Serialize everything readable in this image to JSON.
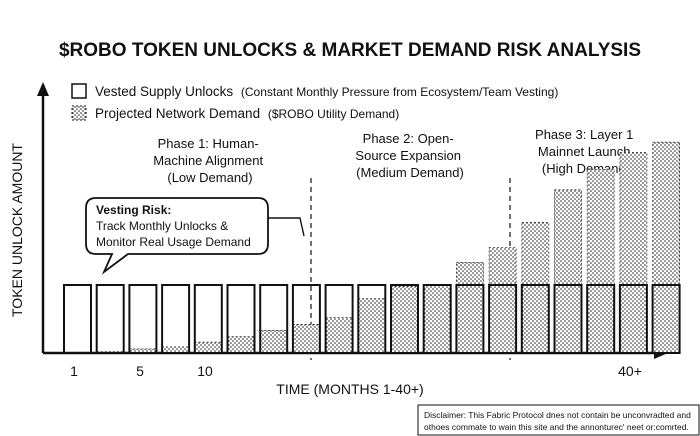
{
  "chart_data": {
    "type": "bar",
    "title": "$ROBO TOKEN UNLOCKS & MARKET DEMAND RISK ANALYSIS",
    "xlabel": "TIME (MONTHS 1-40+)",
    "ylabel": "TOKEN UNLOCK AMOUNT",
    "x_ticks": [
      "1",
      "5",
      "10",
      "40+"
    ],
    "legend": [
      {
        "main": "Vested Supply Unlocks",
        "sub": "(Constant Monthly Pressure from Ecosystem/Team Vesting)",
        "style": "outline"
      },
      {
        "main": "Projected Network Demand",
        "sub": "($ROBO Utility Demand)",
        "style": "dotted"
      }
    ],
    "categories": [
      "",
      "",
      "",
      "",
      "",
      "",
      "",
      "",
      "",
      "",
      "",
      "",
      "",
      "",
      "",
      "",
      "",
      "",
      ""
    ],
    "series": [
      {
        "name": "Vested Supply Unlocks",
        "values": [
          1,
          1,
          1,
          1,
          1,
          1,
          1,
          1,
          1,
          1,
          1,
          1,
          1,
          1,
          1,
          1,
          1,
          1,
          1
        ]
      },
      {
        "name": "Projected Network Demand",
        "values": [
          0,
          0.02,
          0.06,
          0.09,
          0.16,
          0.24,
          0.33,
          0.42,
          0.52,
          0.8,
          0.98,
          1.0,
          1.33,
          1.55,
          1.92,
          2.4,
          2.7,
          2.95,
          3.1
        ]
      }
    ],
    "ylim": [
      0,
      3.5
    ],
    "phases": [
      {
        "name": "Phase 1: Human-Machine Alignment",
        "lines": [
          "Phase 1: Human-",
          "Machine Alignment",
          "(Low Demand)"
        ]
      },
      {
        "name": "Phase 2: Open-Source Expansion",
        "lines": [
          "Phase 2: Open-",
          "Source Expansion",
          "(Medium Demand)"
        ]
      },
      {
        "name": "Phase 3: Layer 1 Mainnet Launch",
        "lines": [
          "Phase 3: Layer 1",
          "Mainnet Launch",
          "(High Demand)"
        ]
      }
    ],
    "callout": {
      "title": "Vesting Risk:",
      "lines": [
        "Track Monthly Unlocks &",
        "Monitor Real Usage Demand"
      ]
    },
    "grid": false
  },
  "disclaimer": {
    "line1": "Disclaimer: This Fabric Protocol dnes not contain be unconvradted and",
    "line2": "othoes commate to wain this site and the annonturec' neet or:comrted."
  }
}
